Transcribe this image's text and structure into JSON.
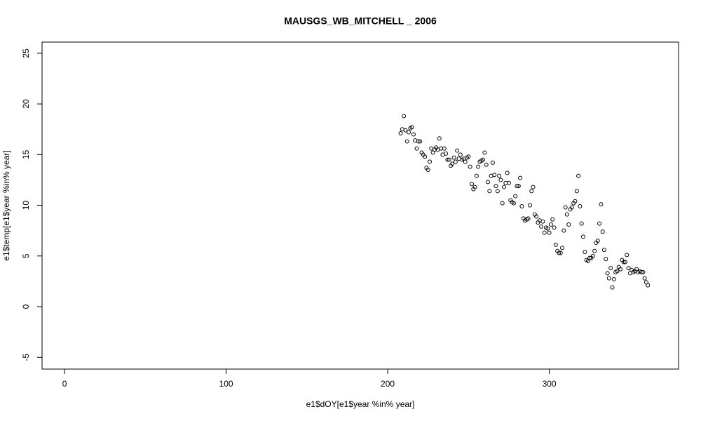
{
  "chart_data": {
    "type": "scatter",
    "title": "MAUSGS_WB_MITCHELL _ 2006",
    "x_label": "e1$dOY[e1$year %in% year]",
    "y_label": "e1$temp[e1$year %in% year]",
    "xlim": [
      -13.9,
      380
    ],
    "ylim": [
      -6.16,
      26.1
    ],
    "xticks": [
      0,
      100,
      200,
      300
    ],
    "yticks": [
      -5,
      0,
      5,
      10,
      15,
      20,
      25
    ],
    "color": "#000000",
    "x": [
      208,
      209,
      210,
      211,
      212,
      213,
      214,
      215,
      216,
      217,
      218,
      219,
      220,
      221,
      222,
      223,
      224,
      225,
      226,
      227,
      228,
      229,
      230,
      231,
      232,
      233,
      234,
      235,
      236,
      237,
      238,
      239,
      240,
      241,
      242,
      243,
      244,
      245,
      246,
      247,
      248,
      249,
      250,
      251,
      252,
      253,
      254,
      255,
      256,
      257,
      258,
      259,
      260,
      261,
      262,
      263,
      264,
      265,
      266,
      267,
      268,
      269,
      270,
      271,
      272,
      273,
      274,
      275,
      276,
      277,
      278,
      279,
      280,
      281,
      282,
      283,
      284,
      285,
      286,
      287,
      288,
      289,
      290,
      291,
      292,
      293,
      294,
      295,
      296,
      297,
      298,
      299,
      300,
      301,
      302,
      303,
      304,
      305,
      306,
      307,
      308,
      309,
      310,
      311,
      312,
      313,
      314,
      315,
      316,
      317,
      318,
      319,
      320,
      321,
      322,
      323,
      324,
      325,
      326,
      327,
      328,
      329,
      330,
      331,
      332,
      333,
      334,
      335,
      336,
      337,
      338,
      339,
      340,
      341,
      342,
      343,
      344,
      345,
      346,
      347,
      348,
      349,
      350,
      351,
      352,
      353,
      354,
      355,
      356,
      357,
      358,
      359,
      360,
      361
    ],
    "values": [
      17.1,
      17.5,
      18.8,
      17.4,
      16.3,
      17.2,
      17.6,
      17.7,
      17.0,
      16.4,
      15.6,
      16.3,
      16.3,
      15.2,
      15.0,
      14.8,
      13.7,
      13.5,
      14.3,
      15.6,
      15.2,
      15.5,
      15.7,
      15.5,
      16.6,
      15.6,
      15.0,
      15.6,
      15.1,
      14.5,
      14.5,
      13.9,
      14.1,
      14.7,
      14.3,
      15.4,
      14.6,
      15.0,
      14.5,
      14.6,
      14.3,
      14.7,
      14.8,
      13.8,
      12.1,
      11.6,
      11.8,
      12.9,
      13.8,
      14.3,
      14.4,
      14.5,
      15.2,
      14.0,
      12.3,
      11.4,
      12.9,
      14.2,
      13.0,
      11.9,
      11.4,
      12.9,
      12.5,
      10.2,
      11.8,
      12.2,
      13.2,
      12.2,
      10.5,
      10.3,
      10.2,
      10.9,
      11.9,
      11.9,
      12.7,
      9.9,
      8.7,
      8.5,
      8.6,
      8.7,
      10.0,
      11.4,
      11.8,
      9.1,
      8.9,
      8.3,
      8.5,
      7.9,
      8.4,
      7.3,
      7.8,
      7.7,
      7.3,
      8.1,
      8.6,
      7.8,
      6.1,
      5.5,
      5.3,
      5.3,
      5.8,
      7.5,
      9.8,
      9.1,
      8.1,
      9.6,
      9.8,
      10.2,
      10.4,
      11.4,
      12.9,
      9.9,
      8.2,
      6.9,
      5.4,
      4.6,
      4.5,
      4.8,
      4.8,
      5.0,
      5.5,
      6.3,
      6.5,
      8.2,
      10.1,
      7.4,
      5.6,
      4.7,
      3.3,
      2.8,
      3.8,
      1.9,
      2.7,
      3.4,
      3.5,
      3.9,
      3.7,
      4.6,
      4.4,
      4.4,
      5.1,
      3.8,
      3.3,
      3.6,
      3.4,
      3.5,
      3.7,
      3.4,
      3.5,
      3.4,
      3.4,
      2.8,
      2.4,
      2.1
    ]
  }
}
